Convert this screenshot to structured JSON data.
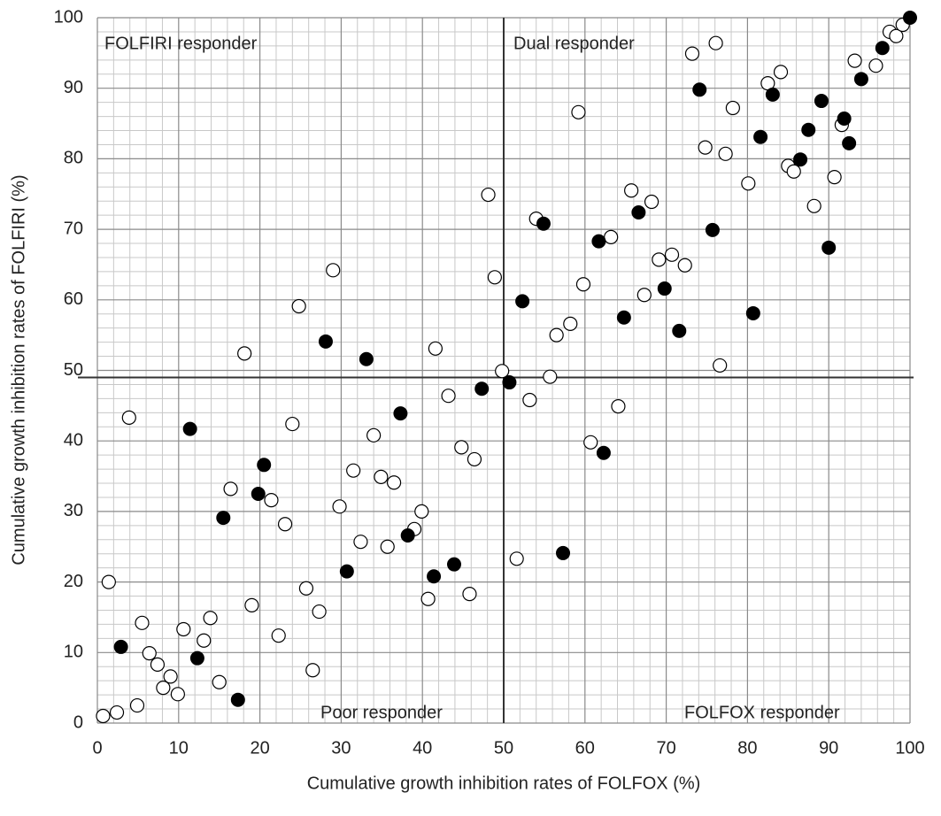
{
  "chart_data": {
    "type": "scatter",
    "xlabel": "Cumulative growth inhibition rates of FOLFOX (%)",
    "ylabel": "Cumulative growth inhibition rates of FOLFIRI (%)",
    "annotations": [
      "FOLFIRI responder",
      "Dual responder",
      "Poor responder",
      "FOLFOX responder"
    ],
    "xlim": [
      0,
      100
    ],
    "ylim": [
      0,
      100
    ],
    "xticks": [
      0,
      10,
      20,
      30,
      40,
      50,
      60,
      70,
      80,
      90,
      100
    ],
    "yticks": [
      0,
      10,
      20,
      30,
      40,
      50,
      60,
      70,
      80,
      90,
      100
    ],
    "grid": true,
    "reference_lines": {
      "x": 50,
      "y": 49
    },
    "series": [
      {
        "color": "#000000",
        "filled": false,
        "x": [
          0.7,
          2.4,
          4.9,
          8.1,
          9.0,
          9.9,
          7.4,
          6.4,
          5.5,
          1.4,
          10.6,
          13.1,
          13.9,
          15.0,
          19.0,
          22.3,
          25.7,
          27.3,
          26.5,
          3.9,
          16.4,
          21.4,
          23.1,
          24.0,
          29.8,
          31.5,
          32.4,
          34.0,
          34.9,
          35.7,
          36.5,
          39.0,
          39.9,
          40.7,
          41.6,
          43.2,
          44.8,
          46.4,
          45.8,
          18.1,
          24.8,
          29.0,
          48.1,
          48.9,
          49.8,
          51.6,
          53.2,
          54.0,
          55.7,
          56.5,
          58.2,
          59.2,
          59.8,
          60.7,
          63.2,
          64.1,
          65.7,
          67.3,
          68.2,
          69.1,
          70.7,
          72.3,
          73.2,
          74.8,
          76.1,
          77.3,
          78.2,
          80.1,
          76.6,
          82.5,
          84.1,
          85.0,
          85.7,
          88.2,
          90.7,
          91.6,
          93.2,
          95.8,
          97.5,
          98.3,
          99.1
        ],
        "values": [
          1.0,
          1.5,
          2.5,
          5.0,
          6.6,
          4.1,
          8.3,
          9.9,
          14.2,
          20.0,
          13.3,
          11.7,
          14.9,
          5.8,
          16.7,
          12.4,
          19.1,
          15.8,
          7.5,
          43.3,
          33.2,
          31.6,
          28.2,
          42.4,
          30.7,
          35.8,
          25.7,
          40.8,
          34.9,
          25.0,
          34.1,
          27.5,
          30.0,
          17.6,
          53.1,
          46.4,
          39.1,
          37.4,
          18.3,
          52.4,
          59.1,
          64.2,
          74.9,
          63.2,
          49.9,
          23.3,
          45.8,
          71.5,
          49.1,
          55.0,
          56.6,
          86.6,
          62.2,
          39.8,
          68.9,
          44.9,
          75.5,
          60.7,
          73.9,
          65.7,
          66.4,
          64.9,
          94.9,
          81.6,
          96.4,
          80.7,
          87.2,
          76.5,
          50.7,
          90.7,
          92.3,
          79.0,
          78.2,
          73.3,
          77.4,
          84.8,
          93.9,
          93.2,
          98.0,
          97.4,
          99.0
        ]
      },
      {
        "color": "#000000",
        "filled": true,
        "x": [
          100,
          96.6,
          74.1,
          83.1,
          89.1,
          94.0,
          87.5,
          81.6,
          91.9,
          86.5,
          92.5,
          66.6,
          54.9,
          61.7,
          75.7,
          90.0,
          69.8,
          52.3,
          64.8,
          71.6,
          80.7,
          28.1,
          33.1,
          47.3,
          50.7,
          37.3,
          11.4,
          20.5,
          19.8,
          15.5,
          62.3,
          38.2,
          30.7,
          41.4,
          43.9,
          57.3,
          2.9,
          12.3,
          17.3
        ],
        "values": [
          100,
          95.7,
          89.8,
          89.1,
          88.2,
          91.3,
          84.1,
          83.1,
          85.7,
          79.9,
          82.2,
          72.4,
          70.8,
          68.3,
          69.9,
          67.4,
          61.6,
          59.8,
          57.5,
          55.6,
          58.1,
          54.1,
          51.6,
          47.4,
          48.3,
          43.9,
          41.7,
          36.6,
          32.5,
          29.1,
          38.3,
          26.6,
          21.5,
          20.8,
          22.5,
          24.1,
          10.8,
          9.2,
          3.3
        ]
      }
    ]
  }
}
